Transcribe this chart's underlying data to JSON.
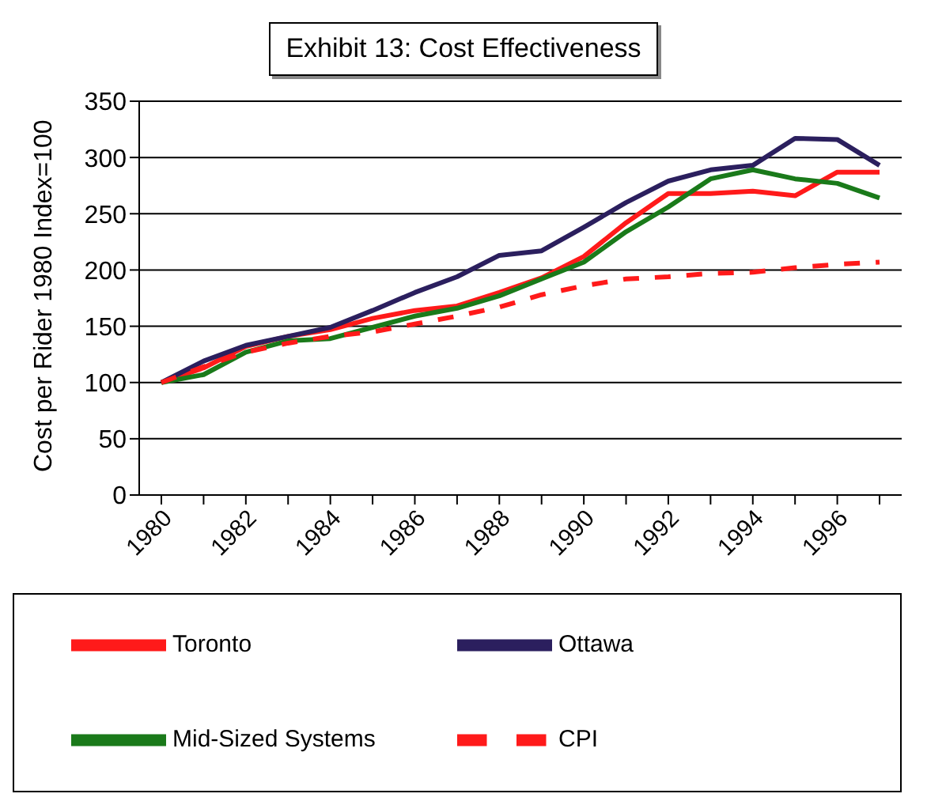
{
  "chart_data": {
    "type": "line",
    "title": "Exhibit 13: Cost Effectiveness",
    "ylabel": "Cost per Rider 1980 Index=100",
    "categories": [
      "1980",
      null,
      "1982",
      null,
      "1984",
      null,
      "1986",
      null,
      "1988",
      null,
      "1990",
      null,
      "1992",
      null,
      "1994",
      null,
      "1996",
      null
    ],
    "series": [
      {
        "name": "Toronto",
        "color": "#ff1a1a",
        "values": [
          100,
          113,
          132,
          141,
          147,
          157,
          164,
          168,
          180,
          193,
          212,
          242,
          268,
          268,
          270,
          266,
          287,
          287
        ]
      },
      {
        "name": "Ottawa",
        "color": "#2b1f5e",
        "values": [
          100,
          119,
          133,
          141,
          149,
          164,
          180,
          194,
          213,
          217,
          238,
          260,
          279,
          289,
          293,
          317,
          316,
          293
        ]
      },
      {
        "name": "Mid-Sized Systems",
        "color": "#1a7a1a",
        "values": [
          100,
          107,
          127,
          137,
          139,
          149,
          159,
          166,
          177,
          192,
          207,
          234,
          256,
          281,
          289,
          281,
          277,
          264
        ]
      },
      {
        "name": "CPI",
        "color": "#ff1a1a",
        "line_style": "dashed",
        "values": [
          100,
          114,
          127,
          135,
          141,
          145,
          152,
          159,
          167,
          178,
          186,
          192,
          194,
          197,
          198,
          202,
          205,
          207
        ]
      }
    ],
    "ylim": [
      0,
      350
    ],
    "yticks": [
      0,
      50,
      100,
      150,
      200,
      250,
      300,
      350
    ],
    "grid": "y",
    "legend": "bottom",
    "marker": "none"
  }
}
